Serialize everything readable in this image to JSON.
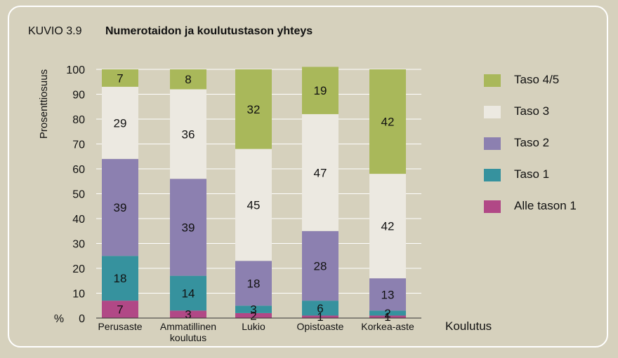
{
  "figure": {
    "label": "KUVIO 3.9",
    "title": "Numerotaidon ja koulutustason yhteys"
  },
  "colors": {
    "background": "#d6d1bd",
    "Taso 4/5": "#a9b85a",
    "Taso 3": "#ece9e1",
    "Taso 2": "#8c80b0",
    "Taso 1": "#36929e",
    "Alle tason 1": "#b14886"
  },
  "chart_data": {
    "type": "bar",
    "stacked": true,
    "title": "Numerotaidon ja koulutustason yhteys",
    "xlabel": "Koulutus",
    "ylabel": "Prosenttiosuus",
    "yunit": "%",
    "ylim": [
      0,
      100
    ],
    "yticks": [
      "0",
      "10",
      "20",
      "30",
      "40",
      "50",
      "60",
      "70",
      "80",
      "90",
      "100"
    ],
    "grid": true,
    "legend_position": "right",
    "categories": [
      "Perusaste",
      "Ammatillinen koulutus",
      "Lukio",
      "Opistoaste",
      "Korkea-aste"
    ],
    "category_lines": [
      [
        "Perusaste"
      ],
      [
        "Ammatillinen",
        "koulutus"
      ],
      [
        "Lukio"
      ],
      [
        "Opistoaste"
      ],
      [
        "Korkea-aste"
      ]
    ],
    "series": [
      {
        "name": "Alle tason 1",
        "values": [
          7,
          3,
          2,
          1,
          1
        ]
      },
      {
        "name": "Taso 1",
        "values": [
          18,
          14,
          3,
          6,
          2
        ]
      },
      {
        "name": "Taso 2",
        "values": [
          39,
          39,
          18,
          28,
          13
        ]
      },
      {
        "name": "Taso 3",
        "values": [
          29,
          36,
          45,
          47,
          42
        ]
      },
      {
        "name": "Taso 4/5",
        "values": [
          7,
          8,
          32,
          19,
          42
        ]
      }
    ],
    "legend_order": [
      "Taso 4/5",
      "Taso 3",
      "Taso 2",
      "Taso 1",
      "Alle tason 1"
    ]
  }
}
